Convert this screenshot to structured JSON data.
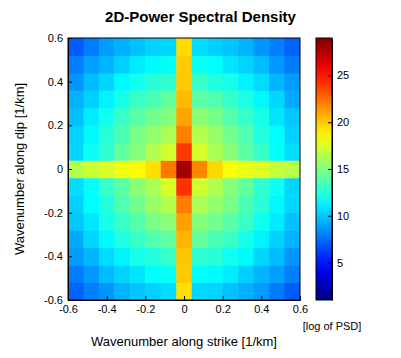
{
  "chart_data": {
    "type": "heatmap",
    "title": "2D-Power Spectral Density",
    "x_label": "Wavenumber along strike [1/km]",
    "y_label": "Wavenumber along dip [1/km]",
    "x": [
      -0.56,
      -0.48,
      -0.4,
      -0.32,
      -0.24,
      -0.16,
      -0.08,
      0,
      0.08,
      0.16,
      0.24,
      0.32,
      0.4,
      0.48,
      0.56
    ],
    "y": [
      -0.56,
      -0.48,
      -0.4,
      -0.32,
      -0.24,
      -0.16,
      -0.08,
      0,
      0.08,
      0.16,
      0.24,
      0.32,
      0.4,
      0.48,
      0.56
    ],
    "z": [
      [
        7.2,
        8.0,
        8.6,
        9.4,
        9.9,
        10.2,
        10.6,
        19.4,
        10.4,
        10.3,
        9.8,
        9.3,
        8.8,
        7.9,
        7.0
      ],
      [
        7.9,
        8.7,
        9.7,
        10.3,
        10.8,
        11.5,
        11.8,
        20.0,
        11.6,
        11.4,
        11.0,
        10.2,
        9.5,
        8.9,
        8.0
      ],
      [
        8.8,
        9.5,
        10.5,
        11.2,
        12.1,
        12.4,
        13.0,
        20.1,
        12.8,
        12.6,
        11.9,
        11.4,
        10.4,
        9.7,
        8.6
      ],
      [
        9.2,
        10.4,
        11.3,
        12.3,
        13.0,
        13.7,
        14.1,
        20.6,
        14.2,
        13.5,
        13.1,
        12.1,
        11.2,
        10.2,
        9.4
      ],
      [
        10.0,
        10.8,
        12.1,
        13.0,
        13.8,
        14.8,
        15.3,
        21.1,
        15.1,
        14.6,
        13.9,
        13.1,
        11.9,
        11.0,
        9.8
      ],
      [
        10.2,
        11.5,
        12.4,
        13.7,
        14.6,
        15.7,
        16.4,
        22.1,
        16.2,
        15.5,
        14.8,
        13.5,
        12.6,
        11.3,
        10.4
      ],
      [
        10.6,
        11.6,
        13.0,
        14.0,
        15.3,
        16.2,
        17.4,
        24.2,
        17.2,
        16.4,
        15.1,
        14.2,
        12.8,
        11.8,
        10.4
      ],
      [
        16.4,
        17.1,
        17.4,
        18.1,
        18.6,
        19.4,
        22.2,
        28.0,
        21.8,
        19.6,
        18.4,
        17.9,
        17.6,
        16.9,
        16.6
      ],
      [
        10.4,
        11.8,
        12.8,
        14.2,
        15.1,
        16.4,
        17.2,
        24.0,
        17.4,
        16.2,
        15.3,
        14.0,
        13.0,
        11.6,
        10.6
      ],
      [
        10.3,
        11.3,
        12.6,
        13.5,
        14.8,
        15.5,
        16.2,
        22.0,
        16.4,
        15.7,
        14.6,
        13.7,
        12.4,
        11.5,
        10.2
      ],
      [
        9.8,
        11.0,
        11.9,
        13.1,
        13.9,
        14.6,
        15.1,
        21.0,
        15.3,
        14.8,
        13.8,
        13.0,
        12.1,
        10.8,
        10.0
      ],
      [
        9.4,
        10.2,
        11.2,
        12.1,
        13.1,
        13.5,
        14.2,
        20.4,
        14.0,
        13.7,
        13.0,
        12.3,
        11.3,
        10.4,
        9.2
      ],
      [
        8.6,
        9.7,
        10.4,
        11.4,
        11.9,
        12.6,
        12.8,
        20.0,
        13.0,
        12.4,
        12.1,
        11.2,
        10.5,
        9.5,
        8.8
      ],
      [
        8.0,
        8.9,
        9.5,
        10.2,
        11.0,
        11.4,
        11.6,
        19.9,
        11.8,
        11.5,
        10.8,
        10.3,
        9.7,
        8.7,
        7.9
      ],
      [
        7.0,
        7.9,
        8.8,
        9.3,
        9.8,
        10.3,
        10.4,
        19.5,
        10.6,
        10.2,
        9.9,
        9.4,
        8.6,
        8.0,
        7.2
      ]
    ],
    "xlim": [
      -0.6,
      0.6
    ],
    "ylim": [
      -0.6,
      0.6
    ],
    "xticks": [
      -0.6,
      -0.4,
      -0.2,
      0,
      0.2,
      0.4,
      0.6
    ],
    "yticks": [
      -0.6,
      -0.4,
      -0.2,
      0,
      0.2,
      0.4,
      0.6
    ],
    "colorbar": {
      "label": "[log of PSD]",
      "zlim": [
        1,
        29
      ],
      "ticks": [
        5,
        10,
        15,
        20,
        25
      ]
    }
  }
}
